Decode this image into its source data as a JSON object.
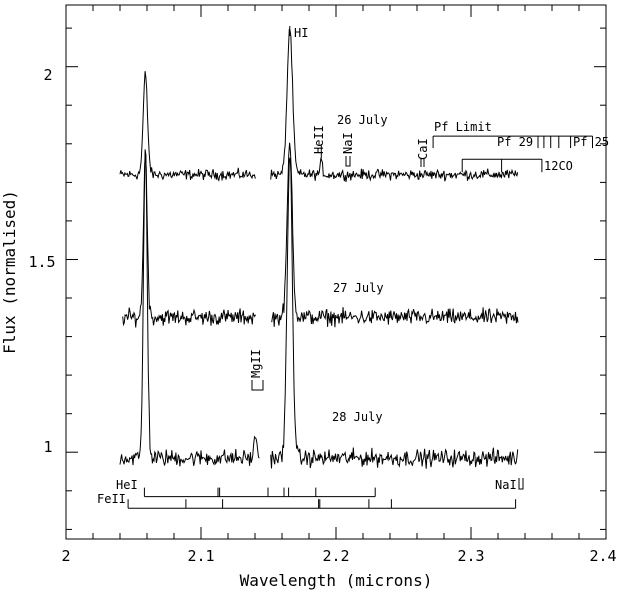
{
  "chart_data": {
    "type": "line",
    "title": "",
    "xlabel": "Wavelength (microns)",
    "ylabel": "Flux (normalised)",
    "xlim": [
      2.0,
      2.4
    ],
    "ylim": [
      0.775,
      2.16
    ],
    "x_ticks": [
      2.0,
      2.1,
      2.2,
      2.3,
      2.4
    ],
    "x_tick_labels": [
      "2",
      "2.1",
      "2.2",
      "2.3",
      "2.4"
    ],
    "y_ticks": [
      1.0,
      1.5,
      2.0
    ],
    "y_tick_labels": [
      "1",
      "1.5",
      "2"
    ],
    "grid": false,
    "series": [
      {
        "name": "26 July",
        "baseline": 1.72,
        "range": [
          2.04,
          2.335
        ],
        "gap": [
          2.1405,
          2.151
        ],
        "noise": 0.011,
        "lines": [
          {
            "x": 2.0588,
            "peak": 0.26,
            "sigma": 0.0016
          },
          {
            "x": 2.1658,
            "peak": 0.38,
            "sigma": 0.002
          },
          {
            "x": 2.1891,
            "peak": 0.03,
            "sigma": 0.001
          }
        ]
      },
      {
        "name": "27 July",
        "baseline": 1.35,
        "range": [
          2.042,
          2.335
        ],
        "gap": [
          2.1405,
          2.152
        ],
        "noise": 0.017,
        "lines": [
          {
            "x": 2.0588,
            "peak": 0.42,
            "sigma": 0.0014
          },
          {
            "x": 2.1658,
            "peak": 0.45,
            "sigma": 0.0019
          }
        ]
      },
      {
        "name": "28 July",
        "baseline": 0.985,
        "range": [
          2.04,
          2.335
        ],
        "gap": [
          2.1435,
          2.1515
        ],
        "noise": 0.018,
        "lines": [
          {
            "x": 2.0588,
            "peak": 0.81,
            "sigma": 0.0014
          },
          {
            "x": 2.1658,
            "peak": 0.79,
            "sigma": 0.0019
          },
          {
            "x": 2.1405,
            "peak": 0.06,
            "sigma": 0.001
          }
        ]
      }
    ],
    "annotations": {
      "hi": "HI",
      "heii": "HeII",
      "nai_top": "NaI",
      "cai": "CaI",
      "pf_limit": "Pf Limit",
      "pf29": "Pf 29",
      "pf25": "Pf 25",
      "co": "12CO",
      "mgii": "MgII",
      "hei": "HeI",
      "feii": "FeII",
      "nai_bottom": "NaI"
    },
    "line_ladders": {
      "hei": {
        "y": 0.885,
        "x": [
          2.0581,
          2.1126,
          2.1138,
          2.1496,
          2.1615,
          2.1649,
          2.185,
          2.229
        ]
      },
      "feii": {
        "y": 0.855,
        "x": [
          2.046,
          2.0888,
          2.116,
          2.1871,
          2.188,
          2.2244,
          2.241,
          2.333
        ]
      },
      "pf": {
        "y": 1.82,
        "x": [
          2.2719,
          2.3496,
          2.354,
          2.359,
          2.365,
          2.3738,
          2.39
        ]
      },
      "co": {
        "y": 1.76,
        "x": [
          2.2935,
          2.3227,
          2.3525
        ]
      }
    }
  }
}
